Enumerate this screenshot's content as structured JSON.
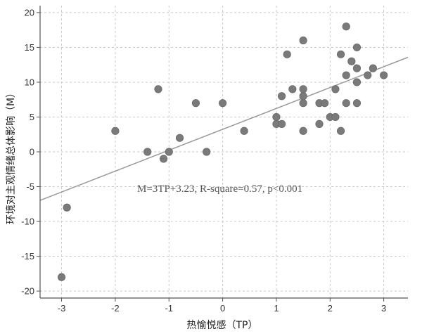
{
  "chart_data": {
    "type": "scatter",
    "xlabel": "热愉悦感（TP）",
    "ylabel": "环境对主观情绪总体影响（M）",
    "xlim": [
      -3.4,
      3.45
    ],
    "ylim": [
      -21,
      21
    ],
    "xticks": [
      -3,
      -2,
      -1,
      0,
      1,
      2,
      3
    ],
    "yticks": [
      -20,
      -15,
      -10,
      -5,
      0,
      5,
      10,
      15,
      20
    ],
    "grid": true,
    "annotation": "M=3TP+3.23, R-square=0.57, p<0.001",
    "fit_line": {
      "slope": 3,
      "intercept": 3.23
    },
    "marker_color": "#7a7a7a",
    "line_color": "#9a9a9a",
    "points": [
      {
        "x": -3.0,
        "y": -18
      },
      {
        "x": -2.9,
        "y": -8
      },
      {
        "x": -2.0,
        "y": 3
      },
      {
        "x": -1.4,
        "y": 0
      },
      {
        "x": -1.2,
        "y": 9
      },
      {
        "x": -1.1,
        "y": -1
      },
      {
        "x": -1.0,
        "y": 0
      },
      {
        "x": -0.8,
        "y": 2
      },
      {
        "x": -0.5,
        "y": 7
      },
      {
        "x": -0.3,
        "y": 0
      },
      {
        "x": 0.0,
        "y": 7
      },
      {
        "x": 0.4,
        "y": 3
      },
      {
        "x": 1.0,
        "y": 4
      },
      {
        "x": 1.0,
        "y": 5
      },
      {
        "x": 1.1,
        "y": 4
      },
      {
        "x": 1.1,
        "y": 8
      },
      {
        "x": 1.2,
        "y": 14
      },
      {
        "x": 1.3,
        "y": 9
      },
      {
        "x": 1.5,
        "y": 3
      },
      {
        "x": 1.5,
        "y": 7
      },
      {
        "x": 1.5,
        "y": 8
      },
      {
        "x": 1.5,
        "y": 9
      },
      {
        "x": 1.5,
        "y": 16
      },
      {
        "x": 1.8,
        "y": 4
      },
      {
        "x": 1.8,
        "y": 7
      },
      {
        "x": 1.9,
        "y": 7
      },
      {
        "x": 2.0,
        "y": 5
      },
      {
        "x": 2.1,
        "y": 5
      },
      {
        "x": 2.1,
        "y": 9
      },
      {
        "x": 2.2,
        "y": 3
      },
      {
        "x": 2.2,
        "y": 14
      },
      {
        "x": 2.3,
        "y": 7
      },
      {
        "x": 2.3,
        "y": 11
      },
      {
        "x": 2.3,
        "y": 18
      },
      {
        "x": 2.4,
        "y": 13
      },
      {
        "x": 2.5,
        "y": 7
      },
      {
        "x": 2.5,
        "y": 10
      },
      {
        "x": 2.5,
        "y": 12
      },
      {
        "x": 2.5,
        "y": 15
      },
      {
        "x": 2.7,
        "y": 11
      },
      {
        "x": 2.8,
        "y": 12
      },
      {
        "x": 3.0,
        "y": 11
      }
    ]
  }
}
